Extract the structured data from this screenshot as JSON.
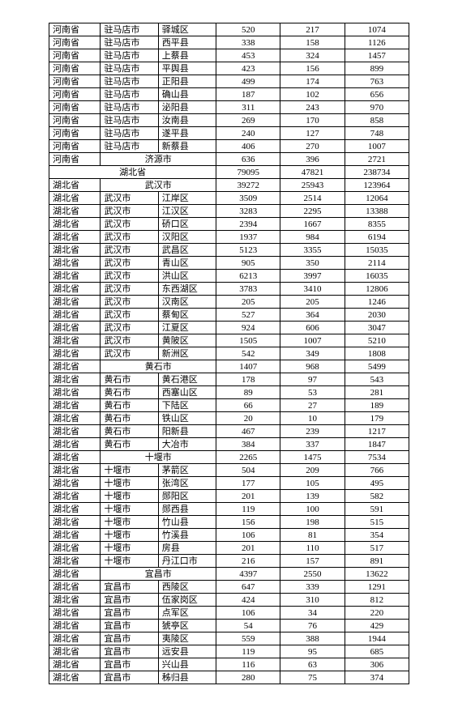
{
  "rows": [
    {
      "prov": "河南省",
      "city": "驻马店市",
      "dist": "驿城区",
      "n1": "520",
      "n2": "217",
      "n3": "1074"
    },
    {
      "prov": "河南省",
      "city": "驻马店市",
      "dist": "西平县",
      "n1": "338",
      "n2": "158",
      "n3": "1126"
    },
    {
      "prov": "河南省",
      "city": "驻马店市",
      "dist": "上蔡县",
      "n1": "453",
      "n2": "324",
      "n3": "1457"
    },
    {
      "prov": "河南省",
      "city": "驻马店市",
      "dist": "平舆县",
      "n1": "423",
      "n2": "156",
      "n3": "899"
    },
    {
      "prov": "河南省",
      "city": "驻马店市",
      "dist": "正阳县",
      "n1": "499",
      "n2": "174",
      "n3": "763"
    },
    {
      "prov": "河南省",
      "city": "驻马店市",
      "dist": "确山县",
      "n1": "187",
      "n2": "102",
      "n3": "656"
    },
    {
      "prov": "河南省",
      "city": "驻马店市",
      "dist": "泌阳县",
      "n1": "311",
      "n2": "243",
      "n3": "970"
    },
    {
      "prov": "河南省",
      "city": "驻马店市",
      "dist": "汝南县",
      "n1": "269",
      "n2": "170",
      "n3": "858"
    },
    {
      "prov": "河南省",
      "city": "驻马店市",
      "dist": "遂平县",
      "n1": "240",
      "n2": "127",
      "n3": "748"
    },
    {
      "prov": "河南省",
      "city": "驻马店市",
      "dist": "新蔡县",
      "n1": "406",
      "n2": "270",
      "n3": "1007"
    },
    {
      "prov": "河南省",
      "city_span": "济源市",
      "n1": "636",
      "n2": "396",
      "n3": "2721"
    },
    {
      "prov_span": "湖北省",
      "n1": "79095",
      "n2": "47821",
      "n3": "238734"
    },
    {
      "prov": "湖北省",
      "city_span": "武汉市",
      "n1": "39272",
      "n2": "25943",
      "n3": "123964"
    },
    {
      "prov": "湖北省",
      "city": "武汉市",
      "dist": "江岸区",
      "n1": "3509",
      "n2": "2514",
      "n3": "12064"
    },
    {
      "prov": "湖北省",
      "city": "武汉市",
      "dist": "江汉区",
      "n1": "3283",
      "n2": "2295",
      "n3": "13388"
    },
    {
      "prov": "湖北省",
      "city": "武汉市",
      "dist": "硚口区",
      "n1": "2394",
      "n2": "1667",
      "n3": "8355"
    },
    {
      "prov": "湖北省",
      "city": "武汉市",
      "dist": "汉阳区",
      "n1": "1937",
      "n2": "984",
      "n3": "6194"
    },
    {
      "prov": "湖北省",
      "city": "武汉市",
      "dist": "武昌区",
      "n1": "5123",
      "n2": "3355",
      "n3": "15035"
    },
    {
      "prov": "湖北省",
      "city": "武汉市",
      "dist": "青山区",
      "n1": "905",
      "n2": "350",
      "n3": "2114"
    },
    {
      "prov": "湖北省",
      "city": "武汉市",
      "dist": "洪山区",
      "n1": "6213",
      "n2": "3997",
      "n3": "16035"
    },
    {
      "prov": "湖北省",
      "city": "武汉市",
      "dist": "东西湖区",
      "n1": "3783",
      "n2": "3410",
      "n3": "12806"
    },
    {
      "prov": "湖北省",
      "city": "武汉市",
      "dist": "汉南区",
      "n1": "205",
      "n2": "205",
      "n3": "1246"
    },
    {
      "prov": "湖北省",
      "city": "武汉市",
      "dist": "蔡甸区",
      "n1": "527",
      "n2": "364",
      "n3": "2030"
    },
    {
      "prov": "湖北省",
      "city": "武汉市",
      "dist": "江夏区",
      "n1": "924",
      "n2": "606",
      "n3": "3047"
    },
    {
      "prov": "湖北省",
      "city": "武汉市",
      "dist": "黄陂区",
      "n1": "1505",
      "n2": "1007",
      "n3": "5210"
    },
    {
      "prov": "湖北省",
      "city": "武汉市",
      "dist": "新洲区",
      "n1": "542",
      "n2": "349",
      "n3": "1808"
    },
    {
      "prov": "湖北省",
      "city_span": "黄石市",
      "n1": "1407",
      "n2": "968",
      "n3": "5499"
    },
    {
      "prov": "湖北省",
      "city": "黄石市",
      "dist": "黄石港区",
      "n1": "178",
      "n2": "97",
      "n3": "543"
    },
    {
      "prov": "湖北省",
      "city": "黄石市",
      "dist": "西塞山区",
      "n1": "89",
      "n2": "53",
      "n3": "281"
    },
    {
      "prov": "湖北省",
      "city": "黄石市",
      "dist": "下陆区",
      "n1": "66",
      "n2": "27",
      "n3": "189"
    },
    {
      "prov": "湖北省",
      "city": "黄石市",
      "dist": "铁山区",
      "n1": "20",
      "n2": "10",
      "n3": "179"
    },
    {
      "prov": "湖北省",
      "city": "黄石市",
      "dist": "阳新县",
      "n1": "467",
      "n2": "239",
      "n3": "1217"
    },
    {
      "prov": "湖北省",
      "city": "黄石市",
      "dist": "大冶市",
      "n1": "384",
      "n2": "337",
      "n3": "1847"
    },
    {
      "prov": "湖北省",
      "city_span": "十堰市",
      "n1": "2265",
      "n2": "1475",
      "n3": "7534"
    },
    {
      "prov": "湖北省",
      "city": "十堰市",
      "dist": "茅箭区",
      "n1": "504",
      "n2": "209",
      "n3": "766"
    },
    {
      "prov": "湖北省",
      "city": "十堰市",
      "dist": "张湾区",
      "n1": "177",
      "n2": "105",
      "n3": "495"
    },
    {
      "prov": "湖北省",
      "city": "十堰市",
      "dist": "郧阳区",
      "n1": "201",
      "n2": "139",
      "n3": "582"
    },
    {
      "prov": "湖北省",
      "city": "十堰市",
      "dist": "郧西县",
      "n1": "119",
      "n2": "100",
      "n3": "591"
    },
    {
      "prov": "湖北省",
      "city": "十堰市",
      "dist": "竹山县",
      "n1": "156",
      "n2": "198",
      "n3": "515"
    },
    {
      "prov": "湖北省",
      "city": "十堰市",
      "dist": "竹溪县",
      "n1": "106",
      "n2": "81",
      "n3": "354"
    },
    {
      "prov": "湖北省",
      "city": "十堰市",
      "dist": "房县",
      "n1": "201",
      "n2": "110",
      "n3": "517"
    },
    {
      "prov": "湖北省",
      "city": "十堰市",
      "dist": "丹江口市",
      "n1": "216",
      "n2": "157",
      "n3": "891"
    },
    {
      "prov": "湖北省",
      "city_span": "宜昌市",
      "n1": "4397",
      "n2": "2550",
      "n3": "13622"
    },
    {
      "prov": "湖北省",
      "city": "宜昌市",
      "dist": "西陵区",
      "n1": "647",
      "n2": "339",
      "n3": "1291"
    },
    {
      "prov": "湖北省",
      "city": "宜昌市",
      "dist": "伍家岗区",
      "n1": "424",
      "n2": "310",
      "n3": "812"
    },
    {
      "prov": "湖北省",
      "city": "宜昌市",
      "dist": "点军区",
      "n1": "106",
      "n2": "34",
      "n3": "220"
    },
    {
      "prov": "湖北省",
      "city": "宜昌市",
      "dist": "猇亭区",
      "n1": "54",
      "n2": "76",
      "n3": "429"
    },
    {
      "prov": "湖北省",
      "city": "宜昌市",
      "dist": "夷陵区",
      "n1": "559",
      "n2": "388",
      "n3": "1944"
    },
    {
      "prov": "湖北省",
      "city": "宜昌市",
      "dist": "远安县",
      "n1": "119",
      "n2": "95",
      "n3": "685"
    },
    {
      "prov": "湖北省",
      "city": "宜昌市",
      "dist": "兴山县",
      "n1": "116",
      "n2": "63",
      "n3": "306"
    },
    {
      "prov": "湖北省",
      "city": "宜昌市",
      "dist": "秭归县",
      "n1": "280",
      "n2": "75",
      "n3": "374"
    }
  ]
}
